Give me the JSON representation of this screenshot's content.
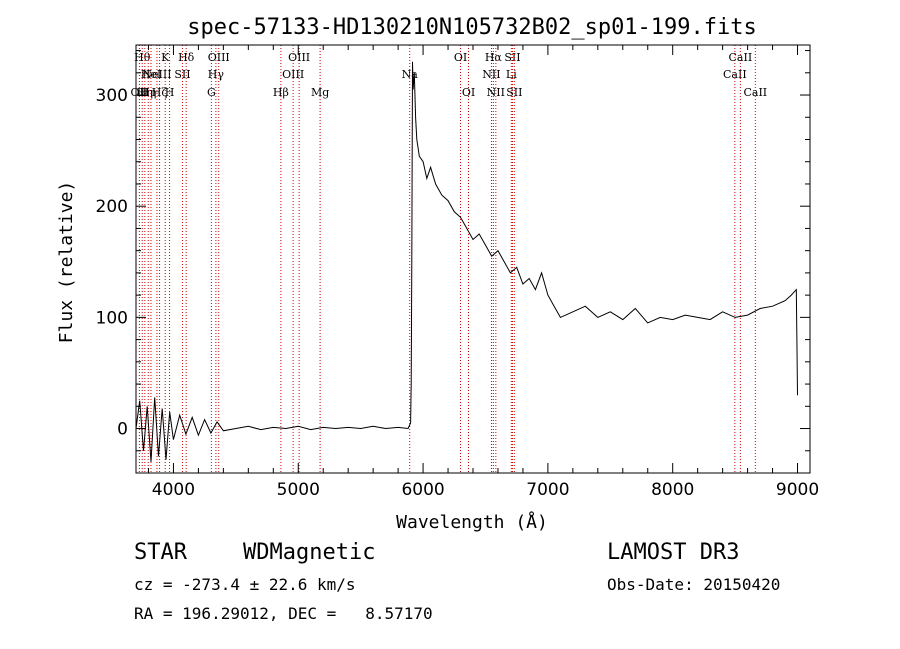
{
  "chart_data": {
    "type": "line",
    "title": "spec-57133-HD130210N105732B02_sp01-199.fits",
    "xlabel": "Wavelength (Å)",
    "ylabel": "Flux (relative)",
    "xlim": [
      3700,
      9100
    ],
    "ylim": [
      -40,
      345
    ],
    "xticks": [
      4000,
      5000,
      6000,
      7000,
      8000,
      9000
    ],
    "xtick_labels": [
      "4000",
      "5000",
      "6000",
      "7000",
      "8000",
      "9000"
    ],
    "yticks": [
      0,
      100,
      200,
      300
    ],
    "ytick_labels": [
      "0",
      "100",
      "200",
      "300"
    ],
    "line_color": "#000000",
    "marker_color": "#cc0000",
    "series": [
      {
        "x": [
          3700,
          3730,
          3760,
          3790,
          3820,
          3850,
          3880,
          3910,
          3940,
          3970,
          4000,
          4050,
          4100,
          4150,
          4200,
          4250,
          4300,
          4350,
          4400,
          4500,
          4600,
          4700,
          4800,
          4900,
          5000,
          5100,
          5200,
          5300,
          5400,
          5500,
          5600,
          5700,
          5800,
          5880,
          5900,
          5905,
          5910,
          5915,
          5920,
          5930,
          5940,
          5950,
          5970,
          6000,
          6030,
          6060,
          6100,
          6150,
          6200,
          6250,
          6300,
          6350,
          6400,
          6450,
          6500,
          6550,
          6600,
          6650,
          6700,
          6750,
          6800,
          6850,
          6900,
          6950,
          7000,
          7050,
          7100,
          7200,
          7300,
          7400,
          7500,
          7600,
          7700,
          7800,
          7900,
          8000,
          8100,
          8200,
          8300,
          8400,
          8500,
          8600,
          8700,
          8800,
          8900,
          8950,
          8990,
          8995,
          9000
        ],
        "y": [
          0,
          25,
          -20,
          20,
          -30,
          28,
          -25,
          18,
          -28,
          15,
          -10,
          12,
          -5,
          10,
          -6,
          8,
          -4,
          6,
          -2,
          0,
          2,
          -1,
          1,
          0,
          2,
          -1,
          1,
          0,
          1,
          0,
          2,
          0,
          1,
          0,
          5,
          40,
          150,
          330,
          305,
          320,
          280,
          260,
          245,
          240,
          225,
          235,
          220,
          210,
          205,
          195,
          190,
          180,
          170,
          175,
          165,
          155,
          160,
          150,
          140,
          145,
          130,
          135,
          125,
          140,
          120,
          110,
          100,
          105,
          110,
          100,
          105,
          98,
          108,
          95,
          100,
          98,
          102,
          100,
          98,
          105,
          100,
          102,
          108,
          110,
          115,
          120,
          125,
          80,
          30
        ]
      }
    ],
    "line_markers": [
      {
        "wavelength": 3727,
        "label": "OII",
        "row": 2
      },
      {
        "wavelength": 3750,
        "label": "Hθ",
        "row": 0
      },
      {
        "wavelength": 3771,
        "label": "Hη",
        "row": 2
      },
      {
        "wavelength": 3798,
        "label": "Hη",
        "row": 2
      },
      {
        "wavelength": 3820,
        "label": "HeI",
        "row": 1
      },
      {
        "wavelength": 3868,
        "label": "NeIII",
        "row": 1
      },
      {
        "wavelength": 3889,
        "label": "Hζ",
        "row": 2
      },
      {
        "wavelength": 3934,
        "label": "K",
        "row": 0
      },
      {
        "wavelength": 3969,
        "label": "H",
        "row": 2
      },
      {
        "wavelength": 4072,
        "label": "SII",
        "row": 1
      },
      {
        "wavelength": 4102,
        "label": "Hδ",
        "row": 0
      },
      {
        "wavelength": 4304,
        "label": "G",
        "row": 2
      },
      {
        "wavelength": 4340,
        "label": "Hγ",
        "row": 1
      },
      {
        "wavelength": 4363,
        "label": "OIII",
        "row": 0
      },
      {
        "wavelength": 4861,
        "label": "Hβ",
        "row": 2
      },
      {
        "wavelength": 4959,
        "label": "OIII",
        "row": 1
      },
      {
        "wavelength": 5007,
        "label": "OIII",
        "row": 0
      },
      {
        "wavelength": 5175,
        "label": "Mg",
        "row": 2
      },
      {
        "wavelength": 5893,
        "label": "Na",
        "row": 1
      },
      {
        "wavelength": 6300,
        "label": "OI",
        "row": 0
      },
      {
        "wavelength": 6364,
        "label": "OI",
        "row": 2
      },
      {
        "wavelength": 6548,
        "label": "NII",
        "row": 1
      },
      {
        "wavelength": 6563,
        "label": "Hα",
        "row": 0
      },
      {
        "wavelength": 6583,
        "label": "NII",
        "row": 2
      },
      {
        "wavelength": 6707,
        "label": "Li",
        "row": 1
      },
      {
        "wavelength": 6716,
        "label": "SII",
        "row": 0
      },
      {
        "wavelength": 6731,
        "label": "SII",
        "row": 2
      },
      {
        "wavelength": 8498,
        "label": "CaII",
        "row": 1
      },
      {
        "wavelength": 8542,
        "label": "CaII",
        "row": 0
      },
      {
        "wavelength": 8662,
        "label": "CaII",
        "row": 2
      }
    ]
  },
  "info": {
    "class": "STAR",
    "subclass": "WDMagnetic",
    "survey": "LAMOST DR3",
    "cz": "cz = -273.4 ± 22.6 km/s",
    "obs_date": "Obs-Date: 20150420",
    "radec": "RA = 196.29012, DEC =   8.57170"
  }
}
